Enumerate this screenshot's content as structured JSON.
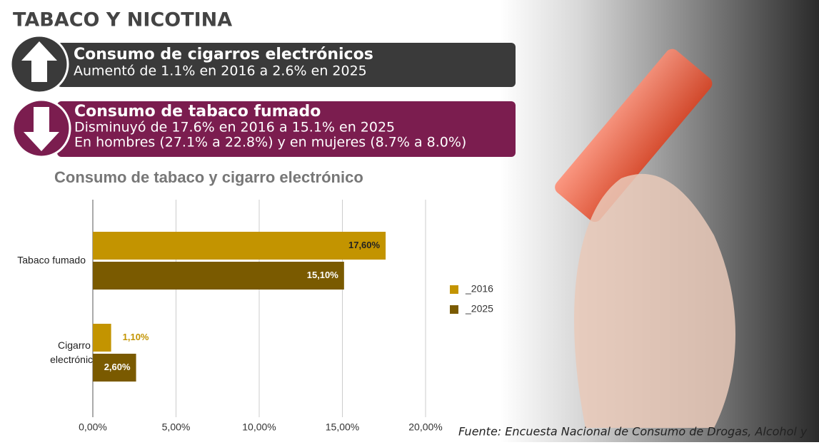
{
  "header": {
    "title": "TABACO Y NICOTINA"
  },
  "banners": [
    {
      "heading": "Consumo de cigarros electrónicos",
      "lines": [
        "Aumentó de 1.1% en 2016 a 2.6% en 2025"
      ]
    },
    {
      "heading": "Consumo de tabaco fumado",
      "lines": [
        "Disminuyó de 17.6% en 2016 a 15.1% en 2025",
        "En hombres (27.1% a 22.8%) y en mujeres (8.7% a 8.0%)"
      ]
    }
  ],
  "chart_data": {
    "type": "bar",
    "orientation": "horizontal",
    "title": "Consumo de tabaco y cigarro electrónico",
    "categories": [
      "Tabaco fumado",
      "Cigarro electrónico"
    ],
    "series": [
      {
        "name": "_2016",
        "color": "#c39400",
        "values": [
          17.6,
          1.1
        ],
        "value_labels": [
          "17,60%",
          "1,10%"
        ]
      },
      {
        "name": "_2025",
        "color": "#7a5a00",
        "values": [
          15.1,
          2.6
        ],
        "value_labels": [
          "15,10%",
          "2,60%"
        ]
      }
    ],
    "xlim": [
      0,
      20
    ],
    "xticks": [
      {
        "value": 0,
        "label": "0,00%"
      },
      {
        "value": 5,
        "label": "5,00%"
      },
      {
        "value": 10,
        "label": "10,00%"
      },
      {
        "value": 15,
        "label": "15,00%"
      },
      {
        "value": 20,
        "label": "20,00%"
      }
    ],
    "grid": true,
    "legend": "right"
  },
  "source": "Fuente: Encuesta Nacional de Consumo de Drogas, Alcohol y"
}
